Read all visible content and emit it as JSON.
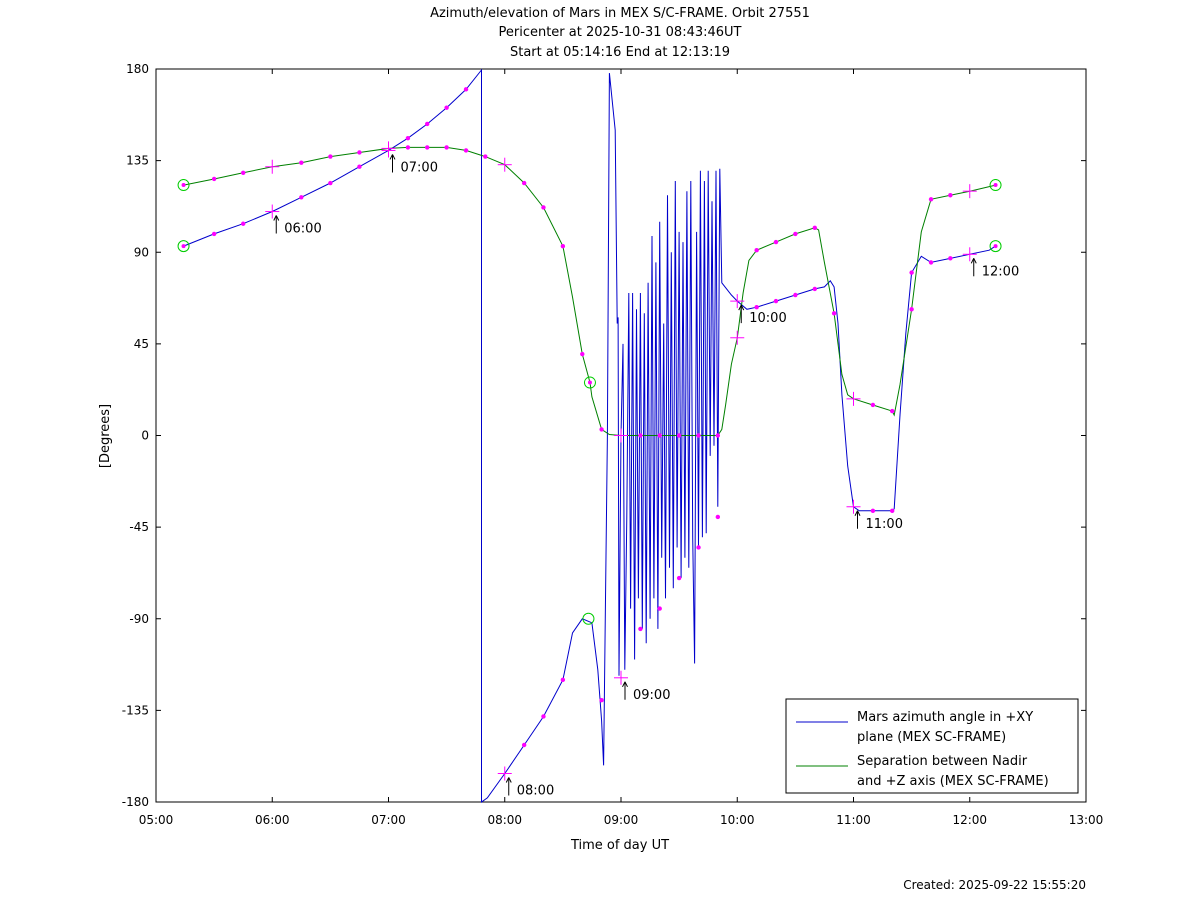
{
  "chart_data": {
    "type": "line",
    "title_lines": [
      "Azimuth/elevation of Mars in MEX S/C-FRAME.  Orbit 27551",
      "Pericenter at 2025-10-31 08:43:46UT",
      "Start at 05:14:16 End at 12:13:19"
    ],
    "xlabel": "Time of day UT",
    "ylabel": "[Degrees]",
    "footer": "Created: 2025-09-22 15:55:20",
    "xlim": [
      5,
      13
    ],
    "ylim": [
      -180,
      180
    ],
    "x_ticks": [
      {
        "v": 5,
        "label": "05:00"
      },
      {
        "v": 6,
        "label": "06:00"
      },
      {
        "v": 7,
        "label": "07:00"
      },
      {
        "v": 8,
        "label": "08:00"
      },
      {
        "v": 9,
        "label": "09:00"
      },
      {
        "v": 10,
        "label": "10:00"
      },
      {
        "v": 11,
        "label": "11:00"
      },
      {
        "v": 12,
        "label": "12:00"
      },
      {
        "v": 13,
        "label": "13:00"
      }
    ],
    "y_ticks": [
      {
        "v": 180,
        "label": "180"
      },
      {
        "v": 135,
        "label": "135"
      },
      {
        "v": 90,
        "label": "90"
      },
      {
        "v": 45,
        "label": "45"
      },
      {
        "v": 0,
        "label": "0"
      },
      {
        "v": -45,
        "label": "-45"
      },
      {
        "v": -90,
        "label": "-90"
      },
      {
        "v": -135,
        "label": "-135"
      },
      {
        "v": -180,
        "label": "-180"
      }
    ],
    "legend": {
      "placement": "bottom-right",
      "entries": [
        {
          "lines": [
            "Mars azimuth angle in +XY",
            "plane (MEX SC-FRAME)"
          ],
          "color": "#0000cc"
        },
        {
          "lines": [
            "Separation between Nadir",
            "and +Z axis (MEX SC-FRAME)"
          ],
          "color": "#008000"
        }
      ]
    },
    "series": [
      {
        "color": "#0000cc",
        "points": [
          [
            5.237,
            93
          ],
          [
            5.5,
            99
          ],
          [
            5.75,
            104
          ],
          [
            6.0,
            110
          ],
          [
            6.25,
            117
          ],
          [
            6.5,
            124
          ],
          [
            6.75,
            132
          ],
          [
            7.0,
            140
          ],
          [
            7.167,
            146
          ],
          [
            7.333,
            153
          ],
          [
            7.5,
            161
          ],
          [
            7.667,
            170
          ],
          [
            7.8,
            179.5
          ],
          [
            7.8,
            0
          ],
          [
            7.8,
            -180
          ],
          [
            7.85,
            -178
          ],
          [
            8.0,
            -166
          ],
          [
            8.167,
            -152
          ],
          [
            8.333,
            -138
          ],
          [
            8.5,
            -120
          ],
          [
            8.583,
            -97
          ],
          [
            8.667,
            -90
          ],
          [
            8.75,
            -92
          ],
          [
            8.8,
            -115
          ],
          [
            8.833,
            -140
          ],
          [
            8.85,
            -162
          ],
          [
            8.867,
            -80
          ],
          [
            8.883,
            0
          ],
          [
            8.9,
            178
          ],
          [
            8.95,
            150
          ],
          [
            8.967,
            55
          ],
          [
            8.975,
            58
          ],
          [
            8.983,
            -118
          ],
          [
            9.0,
            0
          ],
          [
            9.017,
            45
          ],
          [
            9.033,
            -115
          ],
          [
            9.05,
            -40
          ],
          [
            9.067,
            70
          ],
          [
            9.083,
            -85
          ],
          [
            9.1,
            70
          ],
          [
            9.117,
            -110
          ],
          [
            9.133,
            62
          ],
          [
            9.15,
            -80
          ],
          [
            9.167,
            70
          ],
          [
            9.183,
            -95
          ],
          [
            9.2,
            60
          ],
          [
            9.217,
            -102
          ],
          [
            9.233,
            75
          ],
          [
            9.25,
            -90
          ],
          [
            9.267,
            98
          ],
          [
            9.283,
            -80
          ],
          [
            9.3,
            85
          ],
          [
            9.317,
            -95
          ],
          [
            9.333,
            105
          ],
          [
            9.35,
            -60
          ],
          [
            9.367,
            55
          ],
          [
            9.383,
            -80
          ],
          [
            9.4,
            118
          ],
          [
            9.417,
            -65
          ],
          [
            9.433,
            90
          ],
          [
            9.45,
            -75
          ],
          [
            9.467,
            125
          ],
          [
            9.483,
            -55
          ],
          [
            9.5,
            100
          ],
          [
            9.517,
            -70
          ],
          [
            9.533,
            95
          ],
          [
            9.55,
            -60
          ],
          [
            9.567,
            120
          ],
          [
            9.583,
            -65
          ],
          [
            9.6,
            125
          ],
          [
            9.617,
            -50
          ],
          [
            9.633,
            -112
          ],
          [
            9.65,
            100
          ],
          [
            9.667,
            -55
          ],
          [
            9.683,
            130
          ],
          [
            9.7,
            -50
          ],
          [
            9.717,
            125
          ],
          [
            9.733,
            -48
          ],
          [
            9.75,
            130
          ],
          [
            9.767,
            -10
          ],
          [
            9.783,
            115
          ],
          [
            9.8,
            -5
          ],
          [
            9.817,
            130
          ],
          [
            9.833,
            -35
          ],
          [
            9.85,
            131
          ],
          [
            9.867,
            75
          ],
          [
            9.95,
            69
          ],
          [
            10.0,
            66
          ],
          [
            10.083,
            62
          ],
          [
            10.167,
            63
          ],
          [
            10.333,
            66
          ],
          [
            10.5,
            69
          ],
          [
            10.667,
            72
          ],
          [
            10.75,
            73
          ],
          [
            10.8,
            76
          ],
          [
            10.833,
            73
          ],
          [
            10.867,
            55
          ],
          [
            10.9,
            20
          ],
          [
            10.95,
            -15
          ],
          [
            11.0,
            -35
          ],
          [
            11.05,
            -37
          ],
          [
            11.167,
            -37
          ],
          [
            11.333,
            -37
          ],
          [
            11.35,
            -36
          ],
          [
            11.4,
            10
          ],
          [
            11.45,
            50
          ],
          [
            11.5,
            80
          ],
          [
            11.583,
            88
          ],
          [
            11.667,
            85
          ],
          [
            11.833,
            87
          ],
          [
            12.0,
            89
          ],
          [
            12.167,
            91
          ],
          [
            12.222,
            93
          ]
        ],
        "markers": [
          [
            5.5,
            99
          ],
          [
            5.75,
            104
          ],
          [
            6.25,
            117
          ],
          [
            6.5,
            124
          ],
          [
            6.75,
            132
          ],
          [
            7.167,
            146
          ],
          [
            7.333,
            153
          ],
          [
            7.5,
            161
          ],
          [
            7.667,
            170
          ],
          [
            8.167,
            -152
          ],
          [
            8.333,
            -138
          ],
          [
            8.5,
            -120
          ],
          [
            8.833,
            -130
          ],
          [
            9.167,
            -95
          ],
          [
            9.333,
            -85
          ],
          [
            9.5,
            -70
          ],
          [
            9.667,
            -55
          ],
          [
            9.833,
            -40
          ],
          [
            10.167,
            63
          ],
          [
            10.333,
            66
          ],
          [
            10.5,
            69
          ],
          [
            10.667,
            72
          ],
          [
            11.167,
            -37
          ],
          [
            11.333,
            -37
          ],
          [
            11.5,
            80
          ],
          [
            11.667,
            85
          ],
          [
            11.833,
            87
          ]
        ],
        "hour_markers": [
          [
            6.0,
            110
          ],
          [
            7.0,
            140
          ],
          [
            8.0,
            -166
          ],
          [
            9.0,
            -119
          ],
          [
            10.0,
            66
          ],
          [
            11.0,
            -35
          ],
          [
            12.0,
            89
          ]
        ],
        "endpoints": [
          [
            5.237,
            93
          ],
          [
            12.222,
            93
          ]
        ]
      },
      {
        "color": "#008000",
        "points": [
          [
            5.237,
            123
          ],
          [
            5.5,
            126
          ],
          [
            5.75,
            129
          ],
          [
            6.0,
            132
          ],
          [
            6.25,
            134
          ],
          [
            6.5,
            137
          ],
          [
            6.75,
            139
          ],
          [
            7.0,
            141
          ],
          [
            7.167,
            141.5
          ],
          [
            7.333,
            141.5
          ],
          [
            7.5,
            141.5
          ],
          [
            7.667,
            140
          ],
          [
            7.833,
            137
          ],
          [
            8.0,
            133
          ],
          [
            8.167,
            124
          ],
          [
            8.333,
            112
          ],
          [
            8.5,
            93
          ],
          [
            8.583,
            68
          ],
          [
            8.667,
            40
          ],
          [
            8.733,
            26
          ],
          [
            8.75,
            19
          ],
          [
            8.833,
            3
          ],
          [
            8.9,
            0.5
          ],
          [
            9.0,
            0
          ],
          [
            9.833,
            0
          ],
          [
            9.867,
            3
          ],
          [
            9.9,
            15
          ],
          [
            9.95,
            35
          ],
          [
            10.0,
            48
          ],
          [
            10.05,
            70
          ],
          [
            10.1,
            86
          ],
          [
            10.167,
            91
          ],
          [
            10.333,
            95
          ],
          [
            10.5,
            99
          ],
          [
            10.667,
            102
          ],
          [
            10.7,
            101
          ],
          [
            10.75,
            85
          ],
          [
            10.833,
            60
          ],
          [
            10.9,
            30
          ],
          [
            10.95,
            20
          ],
          [
            11.0,
            18
          ],
          [
            11.167,
            15
          ],
          [
            11.333,
            12
          ],
          [
            11.35,
            10
          ],
          [
            11.4,
            25
          ],
          [
            11.5,
            62
          ],
          [
            11.583,
            100
          ],
          [
            11.667,
            116
          ],
          [
            11.833,
            118
          ],
          [
            12.0,
            120
          ],
          [
            12.222,
            123
          ]
        ],
        "markers": [
          [
            5.5,
            126
          ],
          [
            5.75,
            129
          ],
          [
            6.25,
            134
          ],
          [
            6.5,
            137
          ],
          [
            6.75,
            139
          ],
          [
            7.167,
            141.5
          ],
          [
            7.333,
            141.5
          ],
          [
            7.5,
            141.5
          ],
          [
            7.667,
            140
          ],
          [
            7.833,
            137
          ],
          [
            8.167,
            124
          ],
          [
            8.333,
            112
          ],
          [
            8.5,
            93
          ],
          [
            8.667,
            40
          ],
          [
            8.833,
            3
          ],
          [
            9.167,
            0
          ],
          [
            9.333,
            0
          ],
          [
            9.5,
            0
          ],
          [
            9.667,
            0
          ],
          [
            9.833,
            0
          ],
          [
            10.167,
            91
          ],
          [
            10.333,
            95
          ],
          [
            10.5,
            99
          ],
          [
            10.667,
            102
          ],
          [
            10.833,
            60
          ],
          [
            11.167,
            15
          ],
          [
            11.333,
            12
          ],
          [
            11.5,
            62
          ],
          [
            11.667,
            116
          ],
          [
            11.833,
            118
          ]
        ],
        "hour_markers": [
          [
            6.0,
            132
          ],
          [
            7.0,
            141
          ],
          [
            8.0,
            133
          ],
          [
            9.0,
            0
          ],
          [
            10.0,
            48
          ],
          [
            11.0,
            18
          ],
          [
            12.0,
            120
          ]
        ],
        "endpoints": [
          [
            5.237,
            123
          ],
          [
            8.733,
            26
          ],
          [
            12.222,
            123
          ]
        ]
      }
    ],
    "extra_circles": [
      [
        8.72,
        -90
      ]
    ],
    "annotations": [
      {
        "x": 6.0,
        "y": 110,
        "label": "06:00"
      },
      {
        "x": 7.0,
        "y": 140,
        "label": "07:00"
      },
      {
        "x": 8.0,
        "y": -166,
        "label": "08:00"
      },
      {
        "x": 9.0,
        "y": -119,
        "label": "09:00"
      },
      {
        "x": 10.0,
        "y": 66,
        "label": "10:00"
      },
      {
        "x": 11.0,
        "y": -35,
        "label": "11:00"
      },
      {
        "x": 12.0,
        "y": 89,
        "label": "12:00"
      }
    ]
  }
}
